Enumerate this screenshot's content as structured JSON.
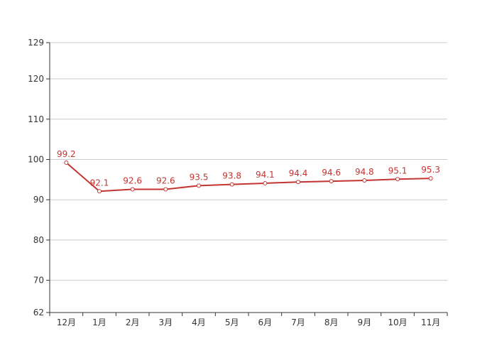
{
  "chart_data": {
    "type": "line",
    "categories": [
      "12月",
      "1月",
      "2月",
      "3月",
      "4月",
      "5月",
      "6月",
      "7月",
      "8月",
      "9月",
      "10月",
      "11月"
    ],
    "series": [
      {
        "values": [
          99.2,
          92.1,
          92.6,
          92.6,
          93.5,
          93.8,
          94.1,
          94.4,
          94.6,
          94.8,
          95.1,
          95.3
        ],
        "color": "#c23531"
      }
    ],
    "y_ticks": [
      62,
      70,
      80,
      90,
      100,
      110,
      120,
      129
    ],
    "ylim": [
      62,
      129
    ],
    "grid": true,
    "data_labels": true
  }
}
